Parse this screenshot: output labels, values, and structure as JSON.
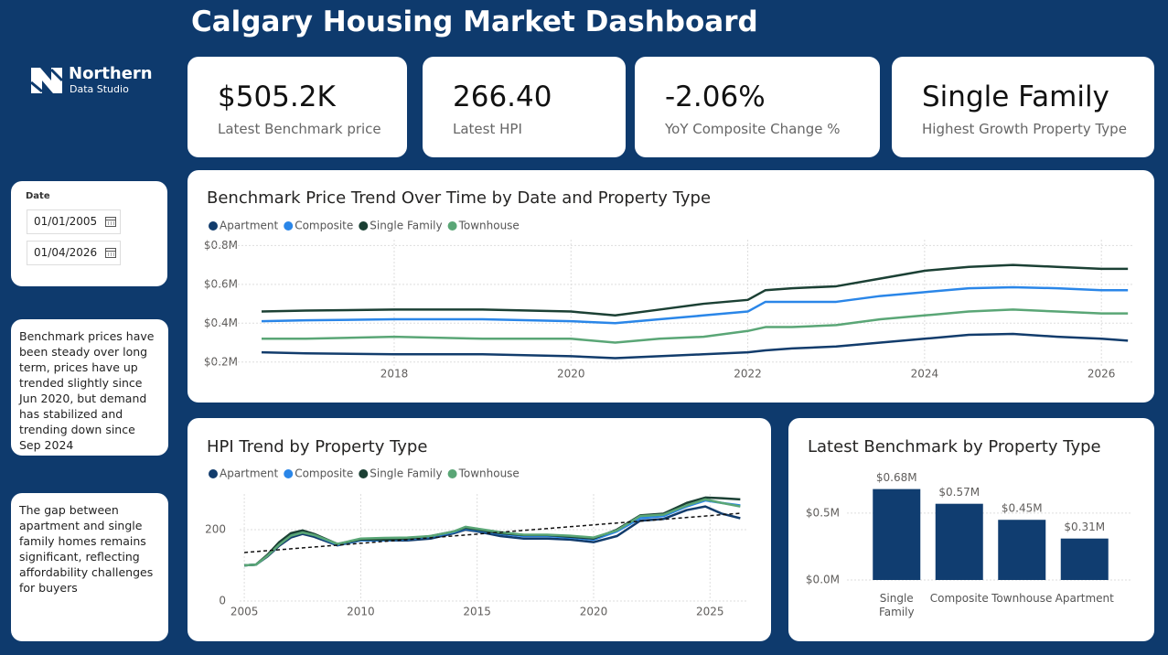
{
  "header": {
    "title": "Calgary Housing Market Dashboard",
    "logo": {
      "name": "Northern",
      "subtitle": "Data Studio"
    }
  },
  "kpis": [
    {
      "value": "$505.2K",
      "label": "Latest Benchmark price"
    },
    {
      "value": "266.40",
      "label": "Latest HPI"
    },
    {
      "value": "-2.06%",
      "label": "YoY Composite Change %"
    },
    {
      "value": "Single Family",
      "label": "Highest Growth Property Type"
    }
  ],
  "filter": {
    "label": "Date",
    "start": "01/01/2005",
    "end": "01/04/2026"
  },
  "notes": [
    "Benchmark prices have been steady over long term, prices have up trended slightly since Jun 2020, but demand has stabilized and trending down since Sep 2024",
    "The gap between apartment and single family homes remains significant, reflecting affordability challenges for buyers"
  ],
  "chart_data": [
    {
      "type": "line",
      "title": "Benchmark Price Trend Over Time by Date and Property Type",
      "x": [
        2016.5,
        2017,
        2018,
        2019,
        2020,
        2020.5,
        2021,
        2021.5,
        2022,
        2022.2,
        2022.5,
        2023,
        2023.5,
        2024,
        2024.5,
        2025,
        2025.5,
        2026,
        2026.3
      ],
      "series": [
        {
          "name": "Apartment",
          "color": "#123c6c",
          "values": [
            0.25,
            0.245,
            0.24,
            0.24,
            0.23,
            0.22,
            0.23,
            0.24,
            0.25,
            0.26,
            0.27,
            0.28,
            0.3,
            0.32,
            0.34,
            0.345,
            0.33,
            0.32,
            0.31
          ]
        },
        {
          "name": "Composite",
          "color": "#2a86e8",
          "values": [
            0.41,
            0.415,
            0.42,
            0.42,
            0.41,
            0.4,
            0.42,
            0.44,
            0.46,
            0.51,
            0.51,
            0.51,
            0.54,
            0.56,
            0.58,
            0.585,
            0.58,
            0.57,
            0.57
          ]
        },
        {
          "name": "Single Family",
          "color": "#1b4034",
          "values": [
            0.46,
            0.465,
            0.47,
            0.47,
            0.46,
            0.44,
            0.47,
            0.5,
            0.52,
            0.57,
            0.58,
            0.59,
            0.63,
            0.67,
            0.69,
            0.7,
            0.69,
            0.68,
            0.68
          ]
        },
        {
          "name": "Townhouse",
          "color": "#5aa676",
          "values": [
            0.32,
            0.32,
            0.33,
            0.32,
            0.32,
            0.3,
            0.32,
            0.33,
            0.36,
            0.38,
            0.38,
            0.39,
            0.42,
            0.44,
            0.46,
            0.47,
            0.46,
            0.45,
            0.45
          ]
        }
      ],
      "xlim": [
        2015.9,
        2026.35
      ],
      "xticks": [
        2018,
        2020,
        2022,
        2024,
        2026
      ],
      "ylim": [
        0.18,
        0.83
      ],
      "yticks": [
        {
          "value": 0.2,
          "label": "$0.2M"
        },
        {
          "value": 0.4,
          "label": "$0.4M"
        },
        {
          "value": 0.6,
          "label": "$0.6M"
        },
        {
          "value": 0.8,
          "label": "$0.8M"
        }
      ],
      "grid": true
    },
    {
      "type": "line",
      "title": "HPI Trend by Property Type",
      "x": [
        2005,
        2005.5,
        2006,
        2006.5,
        2007,
        2007.5,
        2008,
        2009,
        2010,
        2011,
        2012,
        2013,
        2014,
        2014.5,
        2015,
        2016,
        2017,
        2018,
        2019,
        2020,
        2021,
        2022,
        2023,
        2024,
        2024.8,
        2025.5,
        2026.3
      ],
      "series": [
        {
          "name": "Apartment",
          "color": "#123c6c",
          "values": [
            100,
            102,
            125,
            155,
            178,
            188,
            180,
            156,
            170,
            170,
            170,
            175,
            190,
            200,
            195,
            182,
            175,
            175,
            172,
            165,
            182,
            225,
            230,
            255,
            265,
            245,
            232
          ]
        },
        {
          "name": "Composite",
          "color": "#2a86e8",
          "values": [
            100,
            102,
            128,
            160,
            185,
            193,
            185,
            158,
            170,
            170,
            173,
            180,
            193,
            203,
            198,
            188,
            182,
            182,
            178,
            172,
            195,
            232,
            238,
            265,
            282,
            275,
            268
          ]
        },
        {
          "name": "Single Family",
          "color": "#1b4034",
          "values": [
            100,
            102,
            130,
            165,
            190,
            198,
            188,
            160,
            172,
            172,
            175,
            182,
            195,
            205,
            200,
            190,
            185,
            185,
            180,
            175,
            200,
            240,
            245,
            275,
            290,
            288,
            285
          ]
        },
        {
          "name": "Townhouse",
          "color": "#5aa676",
          "values": [
            100,
            102,
            127,
            158,
            183,
            192,
            185,
            160,
            175,
            177,
            178,
            182,
            195,
            208,
            203,
            193,
            186,
            186,
            183,
            178,
            198,
            238,
            242,
            268,
            285,
            275,
            265
          ]
        }
      ],
      "trend_line": {
        "x": [
          2005,
          2026.3
        ],
        "values": [
          136,
          246
        ]
      },
      "xlim": [
        2004.8,
        2026.6
      ],
      "xticks": [
        2005,
        2010,
        2015,
        2020,
        2025
      ],
      "ylim": [
        0,
        300
      ],
      "yticks": [
        0,
        200
      ],
      "grid": true
    },
    {
      "type": "bar",
      "title": "Latest Benchmark by Property Type",
      "categories": [
        "Single Family",
        "Composite",
        "Townhouse",
        "Apartment"
      ],
      "values": [
        0.68,
        0.57,
        0.45,
        0.31
      ],
      "value_labels": [
        "$0.68M",
        "$0.57M",
        "$0.45M",
        "$0.31M"
      ],
      "color": "#103d70",
      "ylim": [
        0,
        0.78
      ],
      "yticks": [
        {
          "value": 0,
          "label": "$0.0M"
        },
        {
          "value": 0.5,
          "label": "$0.5M"
        }
      ],
      "grid": true
    }
  ]
}
